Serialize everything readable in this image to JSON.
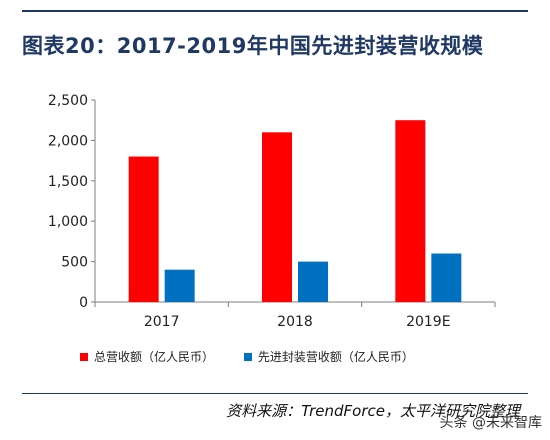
{
  "title": "图表20：2017-2019年中国先进封装营收规模",
  "source": "资料来源：TrendForce，太平洋研究院整理",
  "watermark": "头条 @未来智库",
  "colors": {
    "series1": "#ff0000",
    "series2": "#0070c0",
    "axis": "#7f7f7f",
    "text": "#222222",
    "accent": "#1f3864"
  },
  "chart_data": {
    "type": "bar",
    "title": "",
    "xlabel": "",
    "ylabel": "",
    "ylim": [
      0,
      2500
    ],
    "yticks": [
      0,
      500,
      1000,
      1500,
      2000,
      2500
    ],
    "ytick_labels": [
      "0",
      "500",
      "1,000",
      "1,500",
      "2,000",
      "2,500"
    ],
    "grid": false,
    "legend_position": "bottom",
    "categories": [
      "2017",
      "2018",
      "2019E"
    ],
    "series": [
      {
        "name": "总营收额（亿人民币）",
        "values": [
          1800,
          2100,
          2250
        ]
      },
      {
        "name": "先进封装营收额（亿人民币）",
        "values": [
          400,
          500,
          600
        ]
      }
    ]
  }
}
